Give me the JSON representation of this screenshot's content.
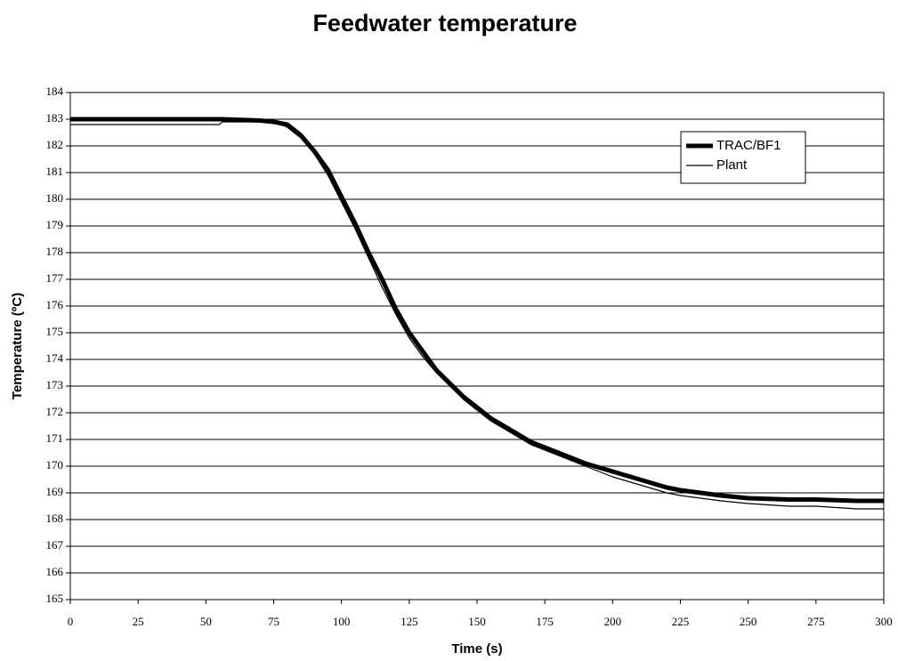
{
  "chart_data": {
    "type": "line",
    "title": "Feedwater temperature",
    "x_label": "Time (s)",
    "y_label": "Temperature (ºC)",
    "x": [
      0,
      25,
      50,
      55,
      56,
      70,
      75,
      80,
      85,
      90,
      95,
      100,
      105,
      110,
      115,
      120,
      125,
      130,
      135,
      140,
      145,
      150,
      155,
      160,
      165,
      170,
      175,
      180,
      190,
      200,
      210,
      220,
      225,
      240,
      250,
      265,
      275,
      290,
      300
    ],
    "series": [
      {
        "name": "TRAC/BF1",
        "color": "#000000",
        "values": [
          183,
          183,
          183,
          183,
          183,
          182.95,
          182.9,
          182.8,
          182.4,
          181.8,
          181.1,
          180.1,
          179.1,
          178,
          177,
          175.9,
          175,
          174.3,
          173.6,
          173.1,
          172.6,
          172.2,
          171.8,
          171.5,
          171.2,
          170.9,
          170.7,
          170.5,
          170.1,
          169.8,
          169.5,
          169.2,
          169.1,
          168.9,
          168.8,
          168.75,
          168.75,
          168.7,
          168.7
        ]
      },
      {
        "name": "Plant",
        "color": "#000000",
        "values": [
          182.8,
          182.8,
          182.8,
          182.8,
          182.9,
          182.9,
          182.9,
          182.7,
          182.3,
          181.7,
          180.9,
          179.9,
          178.9,
          177.8,
          176.7,
          175.7,
          174.8,
          174.1,
          173.5,
          173,
          172.5,
          172.1,
          171.7,
          171.4,
          171.1,
          170.8,
          170.6,
          170.4,
          170,
          169.6,
          169.3,
          169,
          168.9,
          168.7,
          168.6,
          168.5,
          168.5,
          168.4,
          168.4
        ]
      }
    ],
    "xlim": [
      0,
      300
    ],
    "xticks": [
      0,
      25,
      50,
      75,
      100,
      125,
      150,
      175,
      200,
      225,
      250,
      275,
      300
    ],
    "ylim": [
      165,
      184
    ],
    "yticks": [
      165,
      166,
      167,
      168,
      169,
      170,
      171,
      172,
      173,
      174,
      175,
      176,
      177,
      178,
      179,
      180,
      181,
      182,
      183,
      184
    ],
    "grid": true,
    "legend": "upper right"
  }
}
